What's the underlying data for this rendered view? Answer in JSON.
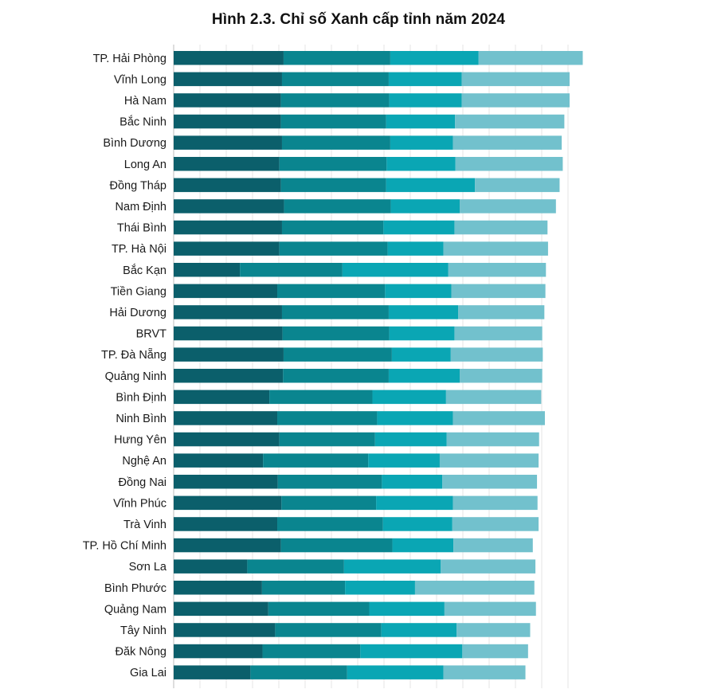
{
  "chart_data": {
    "type": "bar",
    "orientation": "horizontal",
    "stacked": true,
    "title": "Hình 2.3. Chỉ số Xanh cấp tỉnh năm 2024",
    "xlim": [
      0,
      75
    ],
    "grid": true,
    "legend": "none",
    "categories": [
      "TP. Hải Phòng",
      "Vĩnh Long",
      "Hà Nam",
      "Bắc Ninh",
      "Bình Dương",
      "Long An",
      "Đồng Tháp",
      "Nam Định",
      "Thái Bình",
      "TP. Hà Nội",
      "Bắc Kạn",
      "Tiền Giang",
      "Hải Dương",
      "BRVT",
      "TP. Đà Nẵng",
      "Quảng Ninh",
      "Bình Định",
      "Ninh Bình",
      "Hưng Yên",
      "Nghệ An",
      "Đồng Nai",
      "Vĩnh Phúc",
      "Trà Vinh",
      "TP. Hồ Chí Minh",
      "Sơn La",
      "Bình Phước",
      "Quảng Nam",
      "Tây Ninh",
      "Đăk Nông",
      "Gia Lai"
    ],
    "series": [
      {
        "color": "#0b5f6b",
        "values": [
          20.9,
          20.6,
          20.4,
          20.4,
          20.6,
          20.1,
          20.4,
          21.0,
          20.6,
          20.1,
          12.6,
          19.7,
          20.6,
          20.7,
          20.9,
          20.8,
          18.2,
          19.7,
          20.1,
          17.0,
          19.8,
          20.5,
          19.7,
          20.4,
          14.0,
          16.8,
          18.0,
          19.3,
          16.9,
          14.6
        ]
      },
      {
        "color": "#0a858f",
        "values": [
          20.3,
          20.3,
          20.6,
          20.0,
          20.6,
          20.4,
          20.0,
          20.3,
          19.3,
          20.6,
          19.5,
          20.5,
          20.3,
          20.3,
          20.6,
          20.1,
          19.6,
          19.0,
          18.2,
          20.0,
          19.8,
          18.0,
          20.1,
          21.2,
          18.4,
          15.8,
          19.2,
          20.2,
          18.6,
          18.4
        ]
      },
      {
        "color": "#0aa6b4",
        "values": [
          16.8,
          13.9,
          13.8,
          13.1,
          11.9,
          13.1,
          16.9,
          13.1,
          13.5,
          10.6,
          20.1,
          12.6,
          13.2,
          12.4,
          11.2,
          13.5,
          14.0,
          14.4,
          13.6,
          13.6,
          11.5,
          14.6,
          13.2,
          11.6,
          18.4,
          13.3,
          14.3,
          14.3,
          19.4,
          18.3
        ]
      },
      {
        "color": "#72c1cd",
        "values": [
          19.8,
          20.5,
          20.5,
          20.8,
          20.7,
          20.4,
          16.1,
          18.3,
          17.7,
          19.9,
          18.6,
          17.9,
          16.4,
          16.7,
          17.5,
          15.7,
          18.1,
          17.5,
          17.6,
          18.8,
          18.0,
          16.1,
          16.4,
          15.1,
          18.0,
          22.7,
          17.4,
          14.0,
          12.5,
          15.6
        ]
      }
    ]
  }
}
